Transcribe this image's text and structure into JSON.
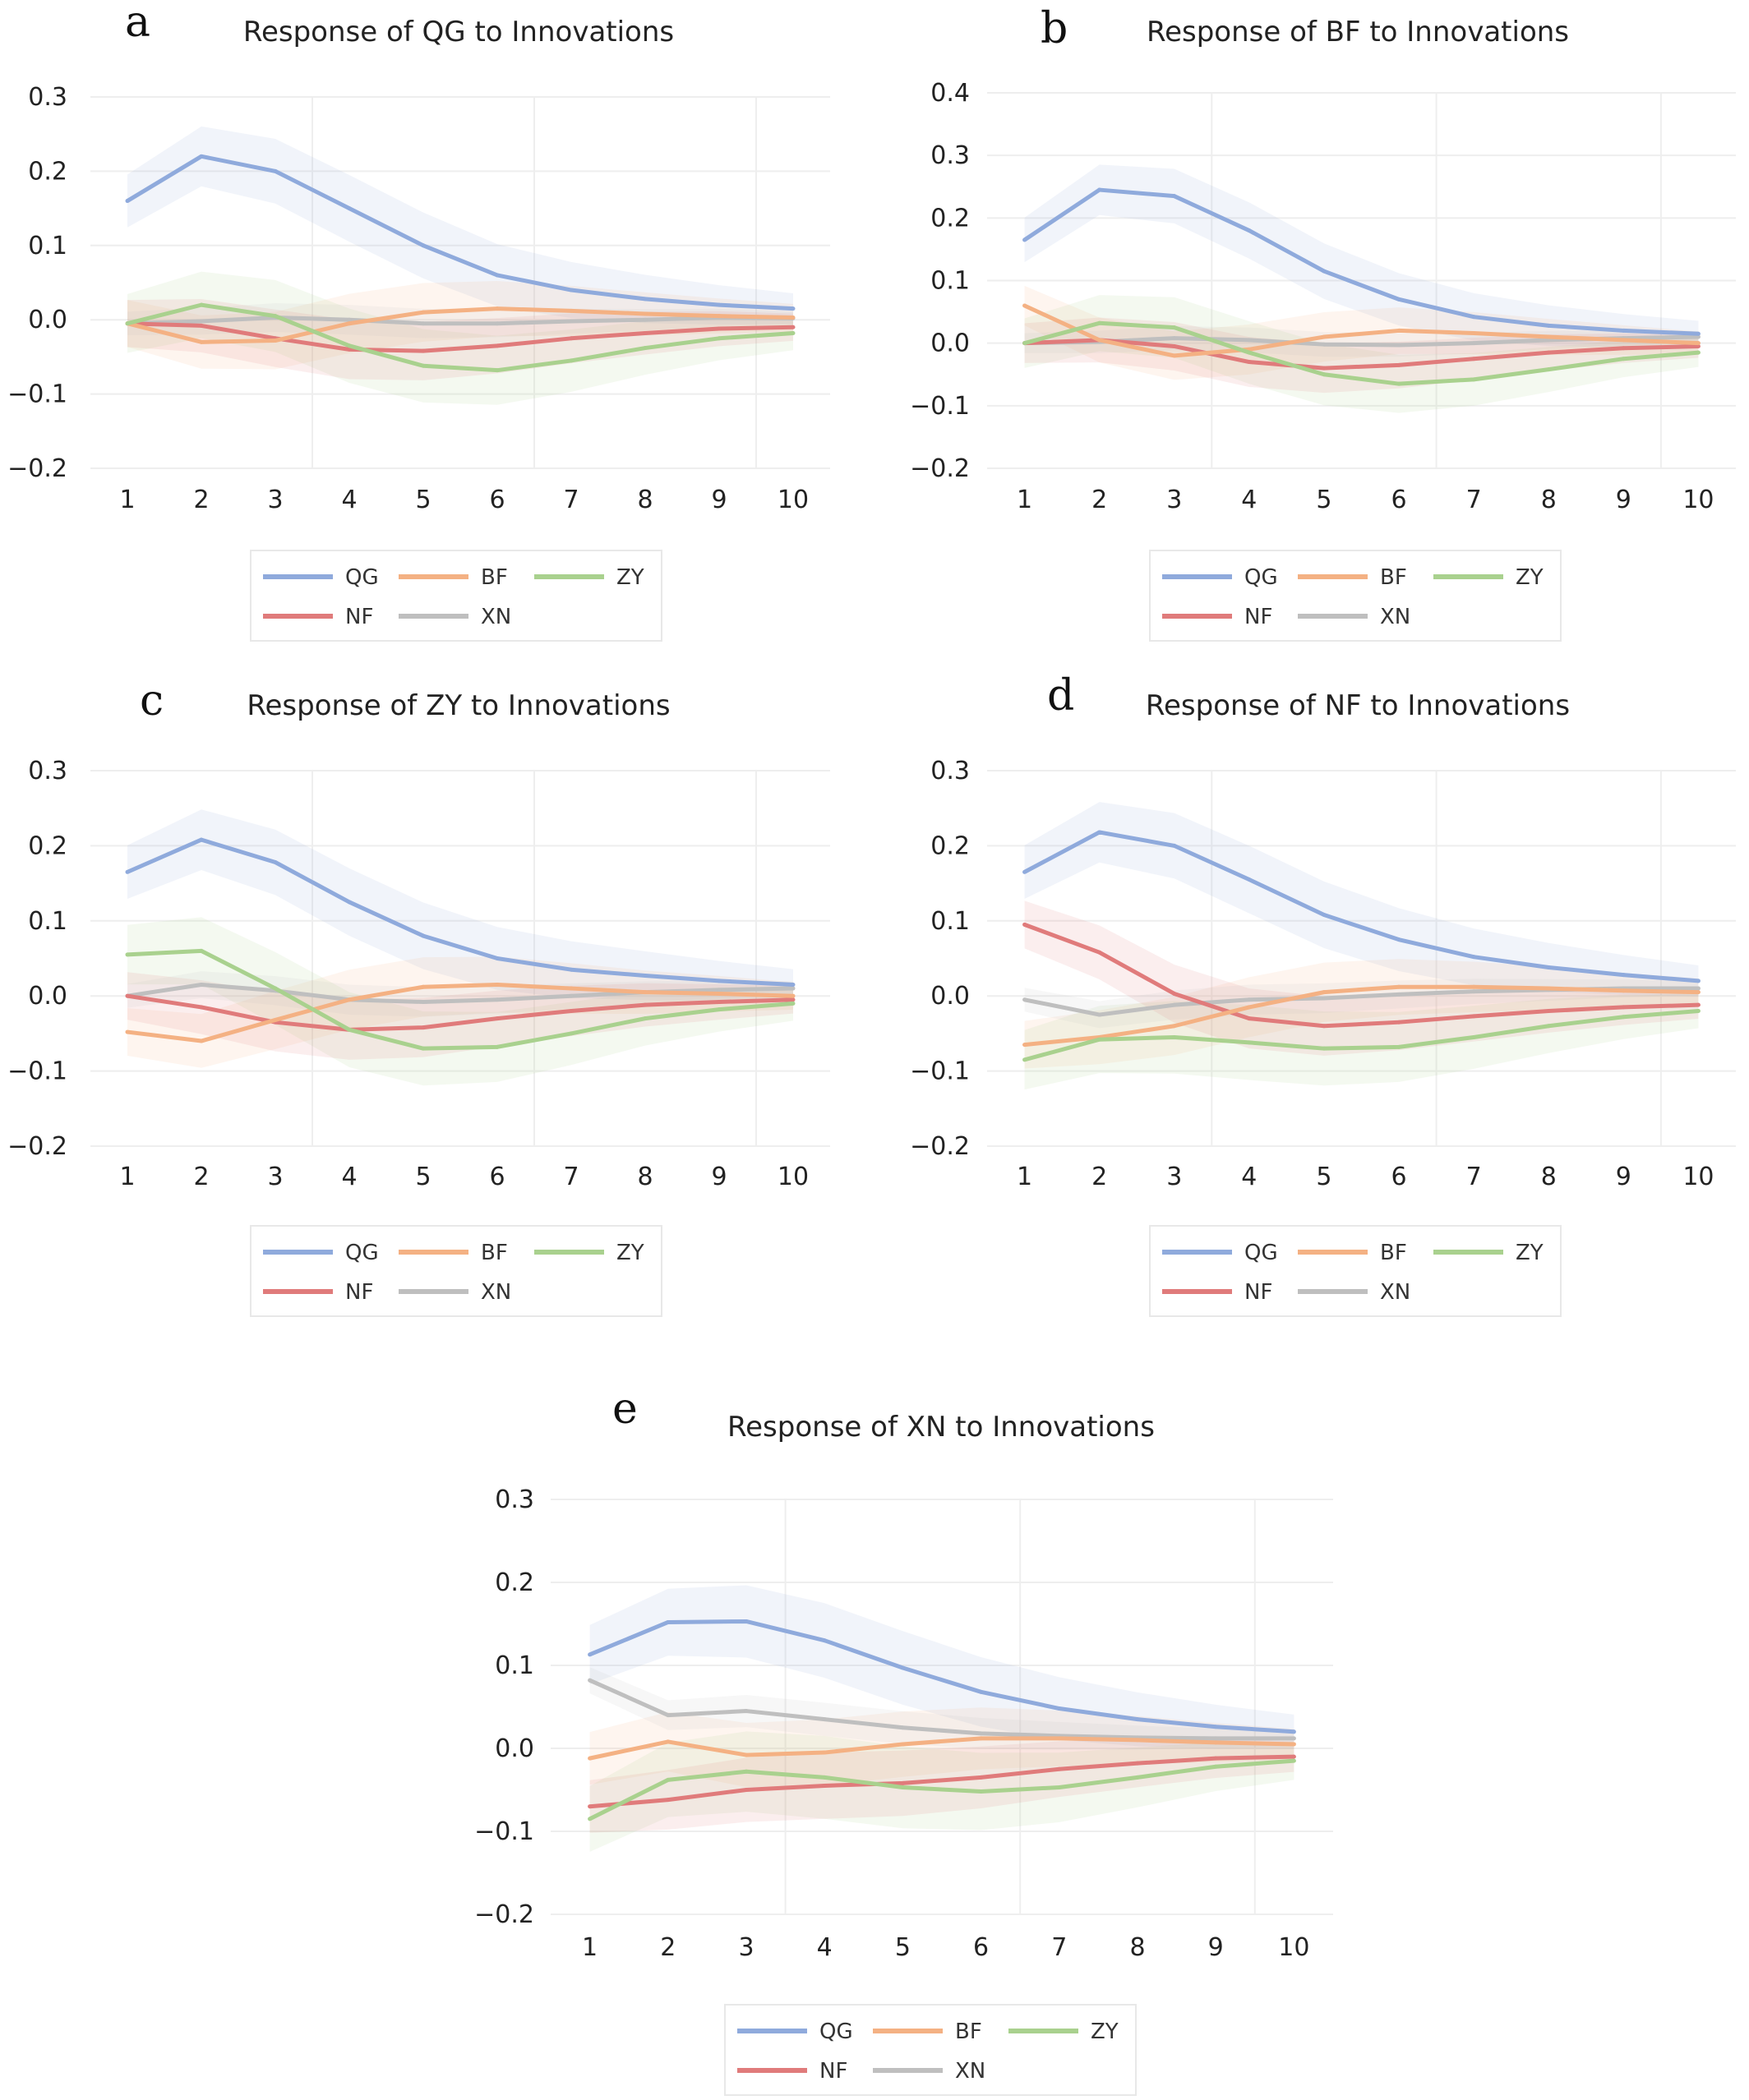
{
  "colors": {
    "QG": "#8faadc",
    "BF": "#f4b183",
    "ZY": "#a9d18e",
    "NF": "#e07b7b",
    "XN": "#bfbfbf"
  },
  "legend": {
    "entries": [
      "QG",
      "BF",
      "ZY",
      "NF",
      "XN"
    ]
  },
  "chart_data": [
    {
      "type": "line",
      "panel_label": "a",
      "title": "Response of QG to Innovations",
      "x": [
        1,
        2,
        3,
        4,
        5,
        6,
        7,
        8,
        9,
        10
      ],
      "ylim": [
        -0.2,
        0.3
      ],
      "yticks": [
        0.3,
        0.2,
        0.1,
        0.0,
        -0.1,
        -0.2
      ],
      "ytick_labels": [
        "0.3",
        "0.2",
        "0.1",
        "0.0",
        "−0.1",
        "−0.2"
      ],
      "series": [
        {
          "name": "QG",
          "values": [
            0.16,
            0.22,
            0.2,
            0.15,
            0.1,
            0.06,
            0.04,
            0.028,
            0.02,
            0.015
          ],
          "band": 0.045
        },
        {
          "name": "BF",
          "values": [
            -0.005,
            -0.03,
            -0.028,
            -0.005,
            0.01,
            0.015,
            0.012,
            0.008,
            0.005,
            0.003
          ],
          "band": 0.04
        },
        {
          "name": "ZY",
          "values": [
            -0.005,
            0.02,
            0.005,
            -0.035,
            -0.062,
            -0.068,
            -0.055,
            -0.038,
            -0.025,
            -0.018
          ],
          "band": 0.05
        },
        {
          "name": "NF",
          "values": [
            -0.005,
            -0.008,
            -0.025,
            -0.04,
            -0.042,
            -0.035,
            -0.025,
            -0.018,
            -0.012,
            -0.01
          ],
          "band": 0.04
        },
        {
          "name": "XN",
          "values": [
            -0.005,
            -0.002,
            0.003,
            0.0,
            -0.005,
            -0.005,
            -0.002,
            0.0,
            0.003,
            0.002
          ],
          "band": 0.02
        }
      ]
    },
    {
      "type": "line",
      "panel_label": "b",
      "title": "Response of BF to Innovations",
      "x": [
        1,
        2,
        3,
        4,
        5,
        6,
        7,
        8,
        9,
        10
      ],
      "ylim": [
        -0.2,
        0.4
      ],
      "yticks": [
        0.4,
        0.3,
        0.2,
        0.1,
        0.0,
        -0.1,
        -0.2
      ],
      "ytick_labels": [
        "0.4",
        "0.3",
        "0.2",
        "0.1",
        "0.0",
        "−0.1",
        "−0.2"
      ],
      "series": [
        {
          "name": "QG",
          "values": [
            0.165,
            0.245,
            0.235,
            0.18,
            0.115,
            0.07,
            0.042,
            0.028,
            0.02,
            0.015
          ],
          "band": 0.045
        },
        {
          "name": "BF",
          "values": [
            0.06,
            0.005,
            -0.02,
            -0.01,
            0.01,
            0.02,
            0.016,
            0.01,
            0.005,
            0.0
          ],
          "band": 0.04
        },
        {
          "name": "ZY",
          "values": [
            0.0,
            0.032,
            0.025,
            -0.015,
            -0.05,
            -0.065,
            -0.058,
            -0.042,
            -0.025,
            -0.015
          ],
          "band": 0.05
        },
        {
          "name": "NF",
          "values": [
            0.0,
            0.005,
            -0.005,
            -0.03,
            -0.04,
            -0.035,
            -0.025,
            -0.015,
            -0.008,
            -0.005
          ],
          "band": 0.04
        },
        {
          "name": "XN",
          "values": [
            0.0,
            0.002,
            0.008,
            0.005,
            -0.002,
            -0.003,
            0.0,
            0.005,
            0.008,
            0.01
          ],
          "band": 0.02
        }
      ]
    },
    {
      "type": "line",
      "panel_label": "c",
      "title": "Response of ZY to Innovations",
      "x": [
        1,
        2,
        3,
        4,
        5,
        6,
        7,
        8,
        9,
        10
      ],
      "ylim": [
        -0.2,
        0.3
      ],
      "yticks": [
        0.3,
        0.2,
        0.1,
        0.0,
        -0.1,
        -0.2
      ],
      "ytick_labels": [
        "0.3",
        "0.2",
        "0.1",
        "0.0",
        "−0.1",
        "−0.2"
      ],
      "series": [
        {
          "name": "QG",
          "values": [
            0.165,
            0.208,
            0.178,
            0.125,
            0.08,
            0.05,
            0.035,
            0.027,
            0.02,
            0.015
          ],
          "band": 0.045
        },
        {
          "name": "BF",
          "values": [
            -0.048,
            -0.06,
            -0.032,
            -0.005,
            0.012,
            0.015,
            0.01,
            0.005,
            0.003,
            0.0
          ],
          "band": 0.04
        },
        {
          "name": "ZY",
          "values": [
            0.055,
            0.06,
            0.01,
            -0.045,
            -0.07,
            -0.068,
            -0.05,
            -0.03,
            -0.018,
            -0.01
          ],
          "band": 0.05
        },
        {
          "name": "NF",
          "values": [
            0.0,
            -0.015,
            -0.035,
            -0.045,
            -0.042,
            -0.03,
            -0.02,
            -0.012,
            -0.008,
            -0.005
          ],
          "band": 0.04
        },
        {
          "name": "XN",
          "values": [
            0.0,
            0.015,
            0.007,
            -0.005,
            -0.008,
            -0.005,
            0.0,
            0.005,
            0.008,
            0.01
          ],
          "band": 0.02
        }
      ]
    },
    {
      "type": "line",
      "panel_label": "d",
      "title": "Response of NF to Innovations",
      "x": [
        1,
        2,
        3,
        4,
        5,
        6,
        7,
        8,
        9,
        10
      ],
      "ylim": [
        -0.2,
        0.3
      ],
      "yticks": [
        0.3,
        0.2,
        0.1,
        0.0,
        -0.1,
        -0.2
      ],
      "ytick_labels": [
        "0.3",
        "0.2",
        "0.1",
        "0.0",
        "−0.1",
        "−0.2"
      ],
      "series": [
        {
          "name": "QG",
          "values": [
            0.165,
            0.218,
            0.2,
            0.155,
            0.108,
            0.075,
            0.052,
            0.038,
            0.028,
            0.02
          ],
          "band": 0.045
        },
        {
          "name": "BF",
          "values": [
            -0.065,
            -0.055,
            -0.04,
            -0.015,
            0.005,
            0.012,
            0.012,
            0.01,
            0.007,
            0.005
          ],
          "band": 0.04
        },
        {
          "name": "ZY",
          "values": [
            -0.085,
            -0.058,
            -0.055,
            -0.062,
            -0.07,
            -0.068,
            -0.055,
            -0.04,
            -0.028,
            -0.02
          ],
          "band": 0.05
        },
        {
          "name": "NF",
          "values": [
            0.095,
            0.058,
            0.003,
            -0.03,
            -0.04,
            -0.035,
            -0.027,
            -0.02,
            -0.015,
            -0.012
          ],
          "band": 0.04
        },
        {
          "name": "XN",
          "values": [
            -0.005,
            -0.025,
            -0.012,
            -0.005,
            -0.003,
            0.002,
            0.006,
            0.008,
            0.01,
            0.01
          ],
          "band": 0.02
        }
      ]
    },
    {
      "type": "line",
      "panel_label": "e",
      "title": "Response of XN to Innovations",
      "x": [
        1,
        2,
        3,
        4,
        5,
        6,
        7,
        8,
        9,
        10
      ],
      "ylim": [
        -0.2,
        0.3
      ],
      "yticks": [
        0.3,
        0.2,
        0.1,
        0.0,
        -0.1,
        -0.2
      ],
      "ytick_labels": [
        "0.3",
        "0.2",
        "0.1",
        "0.0",
        "−0.1",
        "−0.2"
      ],
      "series": [
        {
          "name": "QG",
          "values": [
            0.113,
            0.152,
            0.153,
            0.13,
            0.097,
            0.068,
            0.048,
            0.035,
            0.026,
            0.02
          ],
          "band": 0.045
        },
        {
          "name": "BF",
          "values": [
            -0.012,
            0.008,
            -0.008,
            -0.005,
            0.005,
            0.012,
            0.012,
            0.01,
            0.007,
            0.005
          ],
          "band": 0.04
        },
        {
          "name": "ZY",
          "values": [
            -0.085,
            -0.038,
            -0.028,
            -0.035,
            -0.047,
            -0.052,
            -0.047,
            -0.035,
            -0.022,
            -0.015
          ],
          "band": 0.05
        },
        {
          "name": "NF",
          "values": [
            -0.07,
            -0.062,
            -0.05,
            -0.045,
            -0.042,
            -0.035,
            -0.025,
            -0.018,
            -0.012,
            -0.01
          ],
          "band": 0.04
        },
        {
          "name": "XN",
          "values": [
            0.082,
            0.04,
            0.045,
            0.035,
            0.025,
            0.018,
            0.015,
            0.013,
            0.012,
            0.012
          ],
          "band": 0.02
        }
      ]
    }
  ]
}
